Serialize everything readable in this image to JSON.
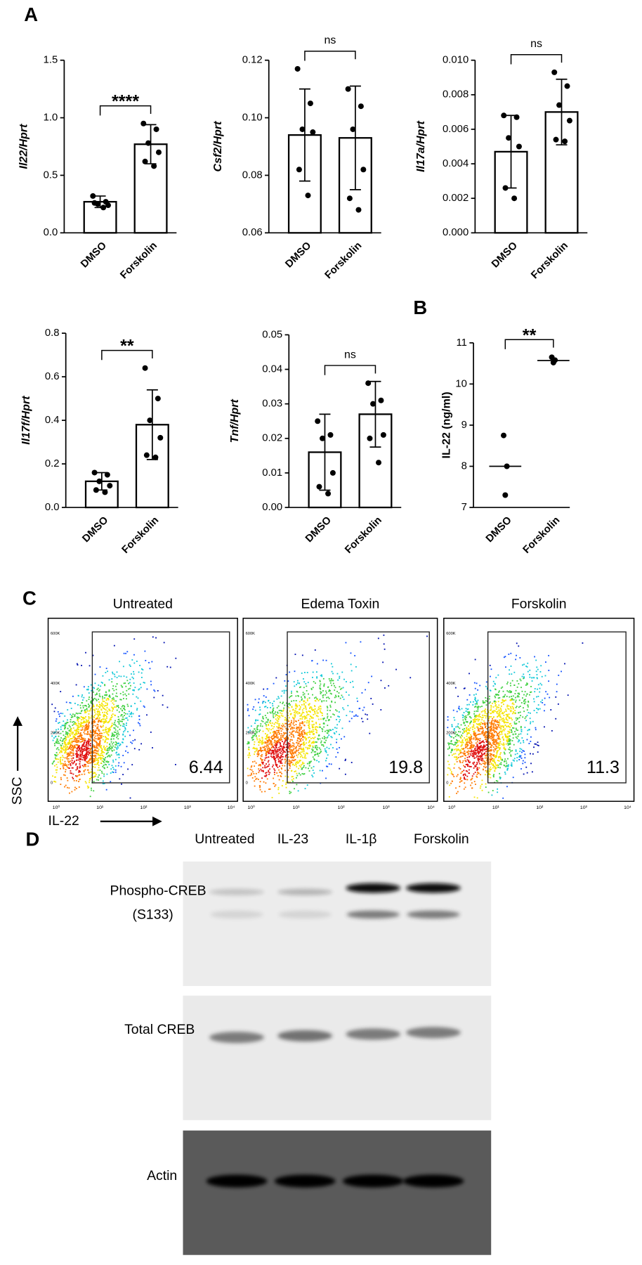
{
  "panel_labels": {
    "a": "A",
    "b": "B",
    "c": "C",
    "d": "D"
  },
  "chart_data": [
    {
      "type": "bar",
      "y_label": "Il22/Hprt",
      "categories": [
        "DMSO",
        "Forskolin"
      ],
      "values": [
        0.27,
        0.77
      ],
      "errors": [
        0.05,
        0.17
      ],
      "points": [
        [
          0.32,
          0.27,
          0.25,
          0.24,
          0.26,
          0.22
        ],
        [
          0.95,
          0.9,
          0.78,
          0.7,
          0.62,
          0.58
        ]
      ],
      "ylim": [
        0,
        1.5
      ],
      "yticks": [
        {
          "value": 0,
          "label": "0.0"
        },
        0.5,
        {
          "value": 1,
          "label": "1.0"
        },
        1.5
      ],
      "significance": "****",
      "color": "#000000"
    },
    {
      "type": "bar",
      "y_label": "Csf2/Hprt",
      "categories": [
        "DMSO",
        "Forskolin"
      ],
      "values": [
        0.094,
        0.093
      ],
      "errors": [
        0.016,
        0.018
      ],
      "points": [
        [
          0.117,
          0.105,
          0.096,
          0.095,
          0.082,
          0.073
        ],
        [
          0.11,
          0.104,
          0.096,
          0.082,
          0.072,
          0.068
        ]
      ],
      "ylim": [
        0.06,
        0.12
      ],
      "yticks": [
        0.06,
        0.08,
        {
          "value": 0.1,
          "label": "0.10"
        },
        0.12
      ],
      "significance": "ns",
      "color": "#000000"
    },
    {
      "type": "bar",
      "y_label": "Il17a/Hprt",
      "categories": [
        "DMSO",
        "Forskolin"
      ],
      "values": [
        0.0047,
        0.007
      ],
      "errors": [
        0.0021,
        0.0019
      ],
      "points": [
        [
          0.0068,
          0.0067,
          0.0055,
          0.005,
          0.0026,
          0.002
        ],
        [
          0.0093,
          0.0085,
          0.0074,
          0.0065,
          0.0054,
          0.0053
        ]
      ],
      "ylim": [
        0,
        0.01
      ],
      "yticks": [
        {
          "value": 0,
          "label": "0.000"
        },
        {
          "value": 0.002,
          "label": "0.002"
        },
        {
          "value": 0.004,
          "label": "0.004"
        },
        {
          "value": 0.006,
          "label": "0.006"
        },
        {
          "value": 0.008,
          "label": "0.008"
        },
        {
          "value": 0.01,
          "label": "0.010"
        }
      ],
      "significance": "ns",
      "color": "#000000"
    },
    {
      "type": "bar",
      "y_label": "Il17f/Hprt",
      "categories": [
        "DMSO",
        "Forskolin"
      ],
      "values": [
        0.12,
        0.38
      ],
      "errors": [
        0.04,
        0.16
      ],
      "points": [
        [
          0.16,
          0.15,
          0.12,
          0.1,
          0.08,
          0.07
        ],
        [
          0.64,
          0.5,
          0.4,
          0.32,
          0.24,
          0.23
        ]
      ],
      "ylim": [
        0,
        0.8
      ],
      "yticks": [
        {
          "value": 0,
          "label": "0.0"
        },
        0.2,
        0.4,
        0.6,
        0.8
      ],
      "significance": "**",
      "color": "#000000"
    },
    {
      "type": "bar",
      "y_label": "Tnf/Hprt",
      "categories": [
        "DMSO",
        "Forskolin"
      ],
      "values": [
        0.016,
        0.027
      ],
      "errors": [
        0.011,
        0.0095
      ],
      "points": [
        [
          0.025,
          0.021,
          0.02,
          0.01,
          0.006,
          0.004
        ],
        [
          0.036,
          0.031,
          0.03,
          0.021,
          0.02,
          0.013
        ]
      ],
      "ylim": [
        0,
        0.05
      ],
      "yticks": [
        {
          "value": 0,
          "label": "0.00"
        },
        0.01,
        0.02,
        0.03,
        0.04,
        0.05
      ],
      "significance": "ns",
      "color": "#000000"
    },
    {
      "type": "strip",
      "y_label": "IL-22 (ng/ml)",
      "categories": [
        "DMSO",
        "Forskolin"
      ],
      "medians": [
        8.0,
        10.57
      ],
      "points": [
        [
          8.75,
          8.0,
          7.3
        ],
        [
          10.65,
          10.58,
          10.52
        ]
      ],
      "ylim": [
        7,
        11
      ],
      "yticks": [
        7,
        8,
        9,
        10,
        11
      ],
      "significance": "**",
      "color": "#000000"
    }
  ],
  "flow": {
    "y_label": "SSC",
    "x_label": "IL-22",
    "y_ticks": [
      "0",
      "200K",
      "400K",
      "600K"
    ],
    "x_ticks": [
      "10⁰",
      "10¹",
      "10²",
      "10³",
      "10⁴"
    ],
    "panels": [
      {
        "title": "Untreated",
        "gate_value": 6.44
      },
      {
        "title": "Edema Toxin",
        "gate_value": 19.8
      },
      {
        "title": "Forskolin",
        "gate_value": 11.3
      }
    ]
  },
  "blot": {
    "lanes": [
      "Untreated",
      "IL-23",
      "IL-1β",
      "Forskolin"
    ],
    "rows": [
      {
        "label": [
          "Phospho-CREB",
          "(S133)"
        ]
      },
      {
        "label": [
          "Total CREB"
        ]
      },
      {
        "label": [
          "Actin"
        ]
      }
    ]
  }
}
